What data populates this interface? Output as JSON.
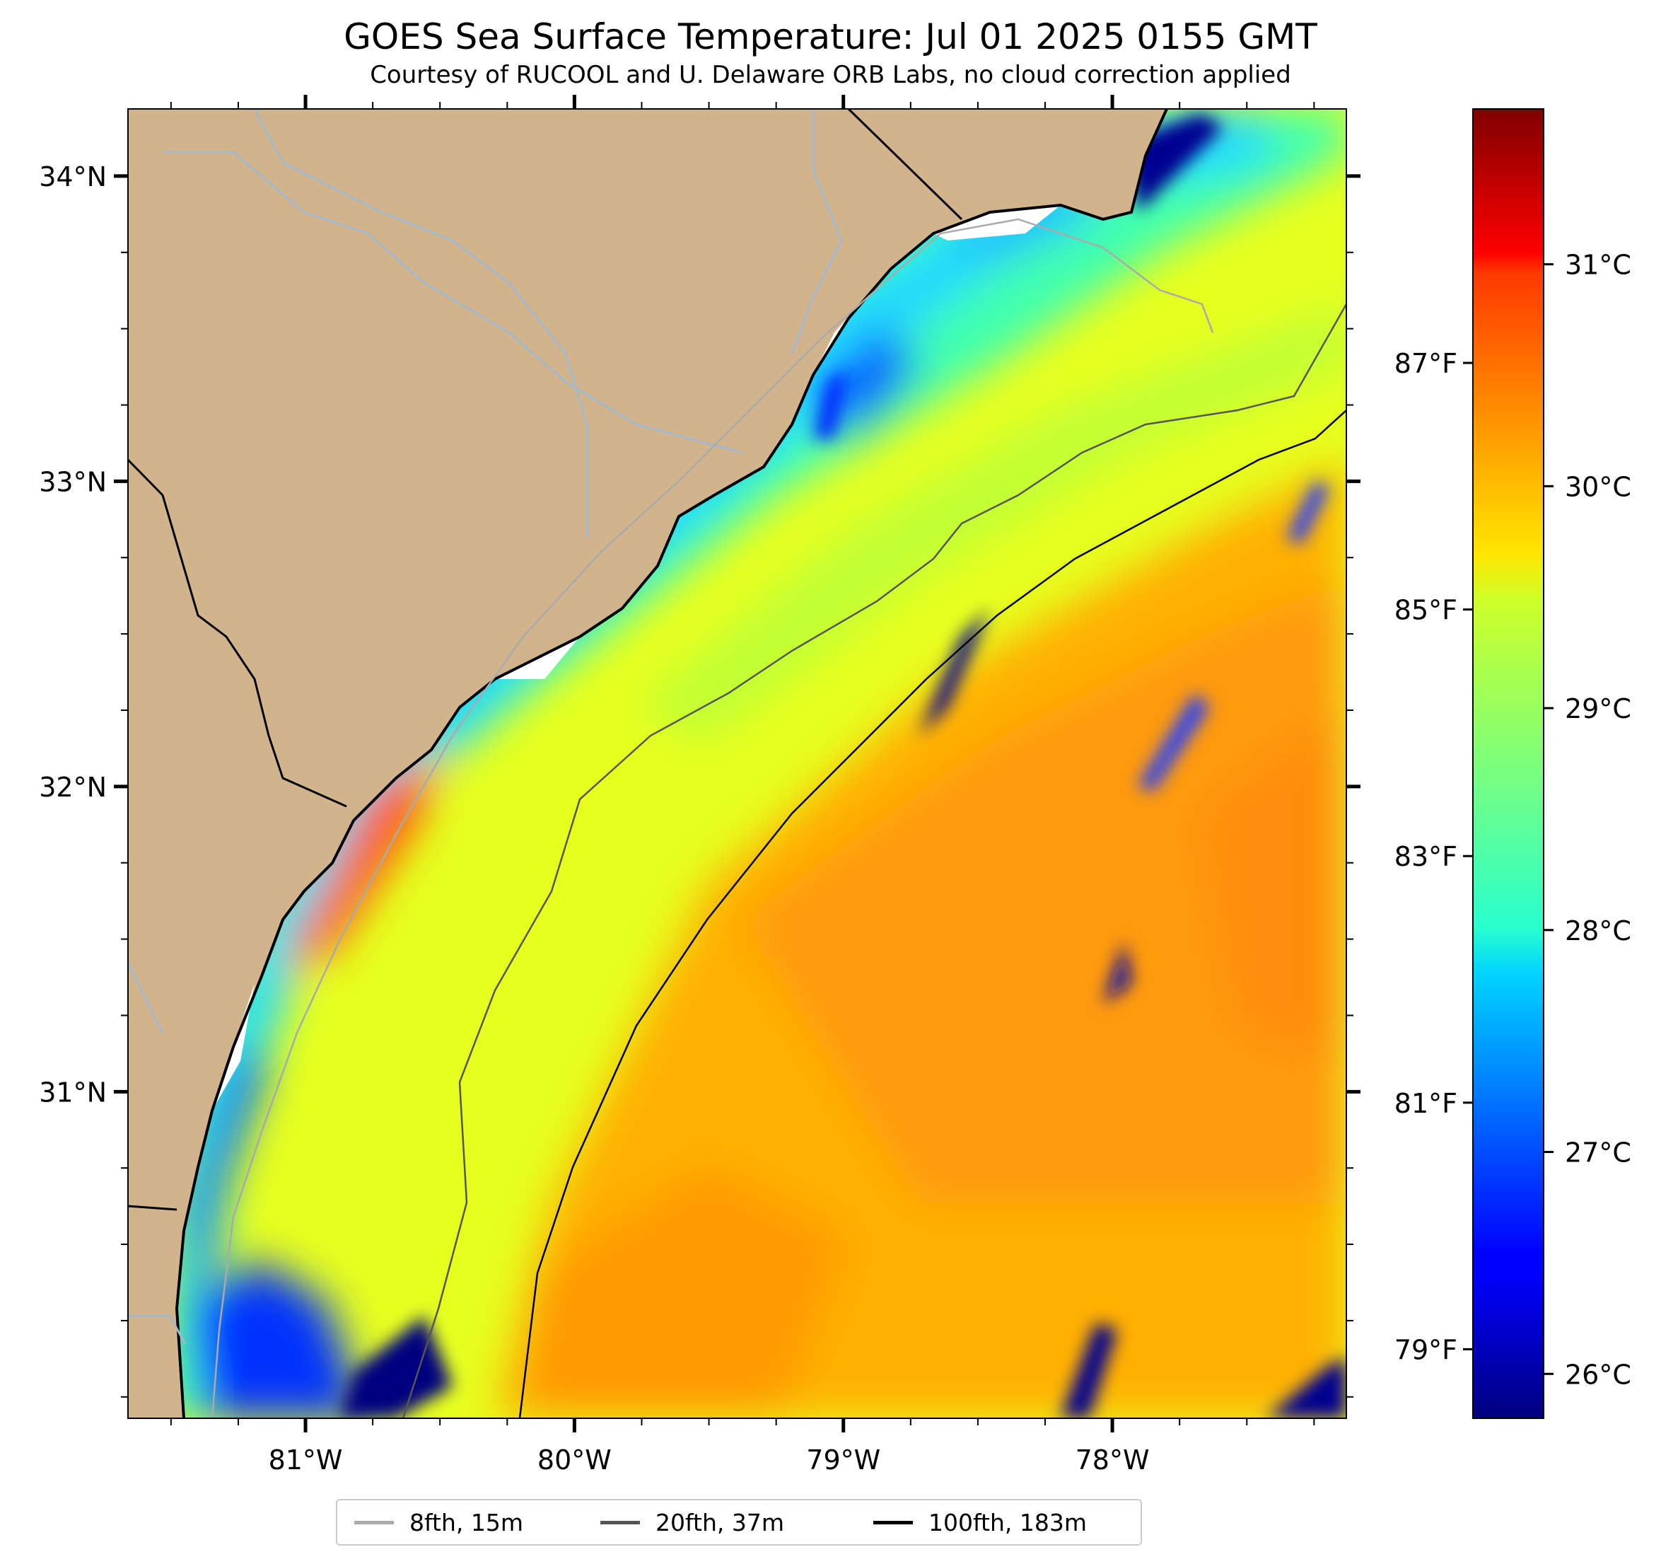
{
  "title": "GOES Sea Surface Temperature: Jul 01 2025 0155 GMT",
  "subtitle": "Courtesy of RUCOOL and U. Delaware ORB Labs, no cloud correction applied",
  "map": {
    "x_axis": {
      "ticks": [
        "81°W",
        "80°W",
        "79°W",
        "78°W"
      ],
      "values": [
        -81,
        -80,
        -79,
        -78
      ],
      "range": [
        -81.66,
        -77.13
      ]
    },
    "y_axis": {
      "ticks": [
        "34°N",
        "33°N",
        "32°N",
        "31°N"
      ],
      "values": [
        34,
        33,
        32,
        31
      ],
      "range": [
        29.93,
        34.22
      ]
    },
    "land_color": "#d2b48c",
    "colormap": "jet"
  },
  "colorbar": {
    "celsius_ticks": [
      "31°C",
      "30°C",
      "29°C",
      "28°C",
      "27°C",
      "26°C"
    ],
    "celsius_values": [
      31,
      30,
      29,
      28,
      27,
      26
    ],
    "fahrenheit_ticks": [
      "87°F",
      "85°F",
      "83°F",
      "81°F",
      "79°F"
    ],
    "fahrenheit_values": [
      87,
      85,
      83,
      81,
      79
    ],
    "range_c": [
      25.8,
      31.7
    ]
  },
  "legend": [
    {
      "label": "8fth, 15m",
      "color": "#aaaaaa"
    },
    {
      "label": "20fth, 37m",
      "color": "#555555"
    },
    {
      "label": "100fth, 183m",
      "color": "#000000"
    }
  ]
}
